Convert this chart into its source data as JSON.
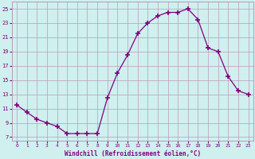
{
  "x": [
    0,
    1,
    2,
    3,
    4,
    5,
    6,
    7,
    8,
    9,
    10,
    11,
    12,
    13,
    14,
    15,
    16,
    17,
    18,
    19,
    20,
    21,
    22,
    23
  ],
  "y": [
    11.5,
    10.5,
    9.5,
    9.0,
    8.5,
    7.5,
    7.5,
    7.5,
    7.5,
    12.5,
    16.0,
    18.5,
    21.5,
    23.0,
    24.0,
    24.5,
    24.5,
    25.0,
    23.5,
    19.5,
    19.0,
    15.5,
    13.5,
    13.0
  ],
  "line_color": "#800080",
  "marker": "+",
  "marker_size": 4,
  "bg_color": "#cff0ee",
  "grid_color": "#bb99bb",
  "xlabel": "Windchill (Refroidissement éolien,°C)",
  "xlabel_color": "#800080",
  "ylabel_ticks": [
    7,
    9,
    11,
    13,
    15,
    17,
    19,
    21,
    23,
    25
  ],
  "xlim": [
    -0.5,
    23.5
  ],
  "ylim": [
    6.5,
    26.0
  ],
  "tick_color": "#800080",
  "font_color": "#800080"
}
